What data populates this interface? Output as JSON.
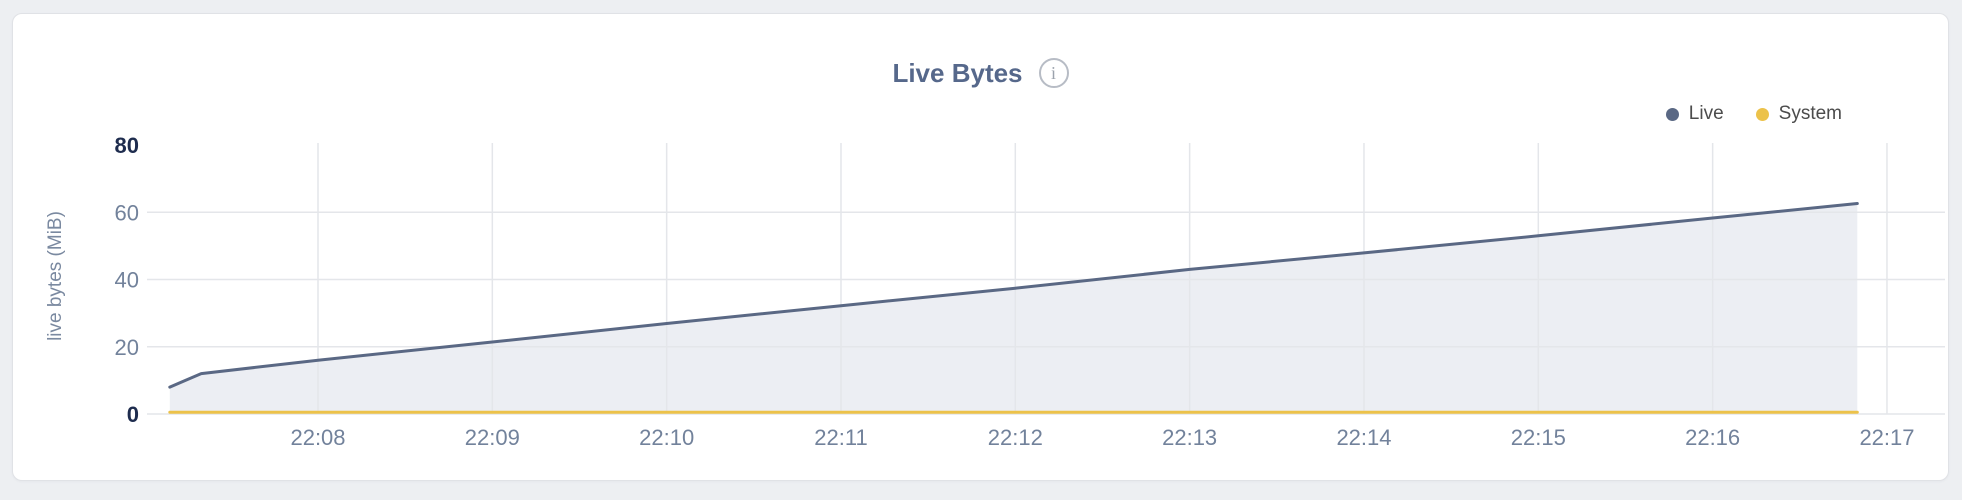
{
  "header": {
    "info_icon_glyph": "i"
  },
  "chart_data": {
    "type": "area",
    "title": "Live Bytes",
    "subtitle": "",
    "xlabel": "",
    "ylabel": "live bytes (MiB)",
    "ylim": [
      0,
      80
    ],
    "y_ticks": [
      0,
      20,
      40,
      60,
      80
    ],
    "y_ticks_bold": [
      0,
      80
    ],
    "x_ticks": [
      {
        "label": "22:08",
        "min": 8
      },
      {
        "label": "22:09",
        "min": 9
      },
      {
        "label": "22:10",
        "min": 10
      },
      {
        "label": "22:11",
        "min": 11
      },
      {
        "label": "22:12",
        "min": 12
      },
      {
        "label": "22:13",
        "min": 13
      },
      {
        "label": "22:14",
        "min": 14
      },
      {
        "label": "22:15",
        "min": 15
      },
      {
        "label": "22:16",
        "min": 16
      },
      {
        "label": "22:17",
        "min": 17
      }
    ],
    "grid": true,
    "legend_position": "top-right",
    "series": [
      {
        "name": "Live",
        "color": "#5a6884",
        "fill": "#eceef3",
        "area": true,
        "points": [
          {
            "time": "22:07:09",
            "min": 7.15,
            "mib": 8.0
          },
          {
            "time": "22:07:20",
            "min": 7.33,
            "mib": 12.0
          },
          {
            "time": "22:08:00",
            "min": 8.0,
            "mib": 16.0
          },
          {
            "time": "22:09:00",
            "min": 9.0,
            "mib": 21.4
          },
          {
            "time": "22:10:00",
            "min": 10.0,
            "mib": 26.9
          },
          {
            "time": "22:11:00",
            "min": 11.0,
            "mib": 32.2
          },
          {
            "time": "22:12:00",
            "min": 12.0,
            "mib": 37.4
          },
          {
            "time": "22:13:00",
            "min": 13.0,
            "mib": 43.0
          },
          {
            "time": "22:14:00",
            "min": 14.0,
            "mib": 47.9
          },
          {
            "time": "22:15:00",
            "min": 15.0,
            "mib": 53.0
          },
          {
            "time": "22:16:00",
            "min": 16.0,
            "mib": 58.3
          },
          {
            "time": "22:16:50",
            "min": 16.83,
            "mib": 62.6
          }
        ]
      },
      {
        "name": "System",
        "color": "#ecc24a",
        "fill": null,
        "area": false,
        "points": [
          {
            "time": "22:07:09",
            "min": 7.15,
            "mib": 0.5
          },
          {
            "time": "22:16:50",
            "min": 16.83,
            "mib": 0.5
          }
        ]
      }
    ]
  },
  "style": {
    "page_background": "#edeff2",
    "card_background": "#ffffff",
    "card_border": "#e0e2e6",
    "title_color": "#56688b",
    "grid_color": "#e4e6ea",
    "tick_color": "#72829b",
    "tick_bold_color": "#1e2c4e",
    "legend_text_color": "#4c4c4c"
  }
}
